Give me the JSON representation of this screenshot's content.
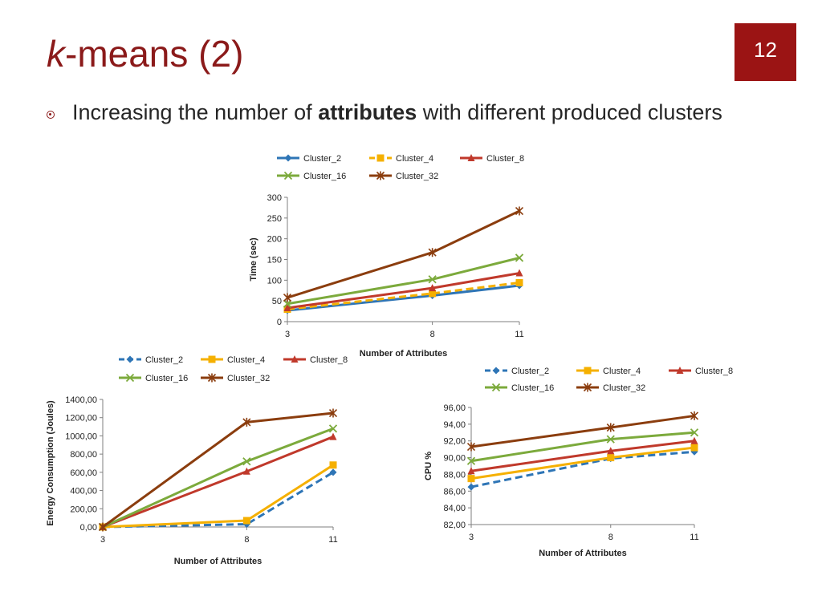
{
  "slide": {
    "title_italic": "k",
    "title_rest": "-means (2)",
    "number": "12",
    "bullet_pre": "Increasing the number of ",
    "bullet_bold": "attributes",
    "bullet_post": " with different produced clusters",
    "accent_color": "#8b1a1a"
  },
  "chart_data": [
    {
      "type": "line",
      "ylabel": "Time (sec)",
      "xlabel": "Number of Attributes",
      "x": [
        "3",
        "8",
        "11"
      ],
      "ylim": [
        0,
        300
      ],
      "yticks": [
        "0",
        "50",
        "100",
        "150",
        "200",
        "250",
        "300"
      ],
      "legend_placement": "top",
      "series": [
        {
          "name": "Cluster_2",
          "values": [
            27,
            63,
            87
          ],
          "color": "#2e75b6",
          "marker": "diamond",
          "dash": false
        },
        {
          "name": "Cluster_4",
          "values": [
            30,
            68,
            94
          ],
          "color": "#f5b000",
          "marker": "square",
          "dash": true
        },
        {
          "name": "Cluster_8",
          "values": [
            33,
            81,
            117
          ],
          "color": "#c0392b",
          "marker": "triangle",
          "dash": false
        },
        {
          "name": "Cluster_16",
          "values": [
            43,
            102,
            154
          ],
          "color": "#7caa3c",
          "marker": "x",
          "dash": false
        },
        {
          "name": "Cluster_32",
          "values": [
            58,
            167,
            267
          ],
          "color": "#8b3d0e",
          "marker": "star",
          "dash": false
        }
      ]
    },
    {
      "type": "line",
      "ylabel": "Energy Consumption (Joules)",
      "xlabel": "Number of Attributes",
      "x": [
        "3",
        "8",
        "11"
      ],
      "ylim": [
        0,
        1400
      ],
      "yticks": [
        "0,00",
        "200,00",
        "400,00",
        "600,00",
        "800,00",
        "1000,00",
        "1200,00",
        "1400,00"
      ],
      "legend_placement": "top",
      "series": [
        {
          "name": "Cluster_2",
          "values": [
            0,
            30,
            600
          ],
          "color": "#2e75b6",
          "marker": "diamond",
          "dash": true
        },
        {
          "name": "Cluster_4",
          "values": [
            0,
            70,
            680
          ],
          "color": "#f5b000",
          "marker": "square",
          "dash": false
        },
        {
          "name": "Cluster_8",
          "values": [
            0,
            610,
            990
          ],
          "color": "#c0392b",
          "marker": "triangle",
          "dash": false
        },
        {
          "name": "Cluster_16",
          "values": [
            0,
            720,
            1080
          ],
          "color": "#7caa3c",
          "marker": "x",
          "dash": false
        },
        {
          "name": "Cluster_32",
          "values": [
            0,
            1150,
            1250
          ],
          "color": "#8b3d0e",
          "marker": "star",
          "dash": false
        }
      ]
    },
    {
      "type": "line",
      "ylabel": "CPU %",
      "xlabel": "Number of Attributes",
      "x": [
        "3",
        "8",
        "11"
      ],
      "ylim": [
        82,
        96
      ],
      "yticks": [
        "82,00",
        "84,00",
        "86,00",
        "88,00",
        "90,00",
        "92,00",
        "94,00",
        "96,00"
      ],
      "legend_placement": "top",
      "series": [
        {
          "name": "Cluster_2",
          "values": [
            86.5,
            89.9,
            90.7
          ],
          "color": "#2e75b6",
          "marker": "diamond",
          "dash": true
        },
        {
          "name": "Cluster_4",
          "values": [
            87.5,
            90.0,
            91.2
          ],
          "color": "#f5b000",
          "marker": "square",
          "dash": false
        },
        {
          "name": "Cluster_8",
          "values": [
            88.4,
            90.8,
            92.0
          ],
          "color": "#c0392b",
          "marker": "triangle",
          "dash": false
        },
        {
          "name": "Cluster_16",
          "values": [
            89.6,
            92.2,
            93.0
          ],
          "color": "#7caa3c",
          "marker": "x",
          "dash": false
        },
        {
          "name": "Cluster_32",
          "values": [
            91.3,
            93.6,
            95.0
          ],
          "color": "#8b3d0e",
          "marker": "star",
          "dash": false
        }
      ]
    }
  ]
}
